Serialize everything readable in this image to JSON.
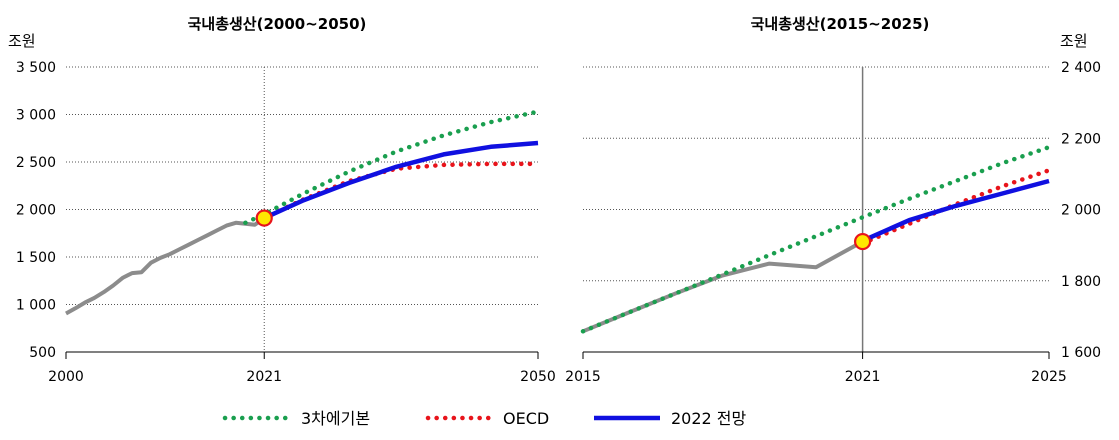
{
  "legend": [
    {
      "name": "3차에기본",
      "color": "#1a9f4f",
      "style": "dotted"
    },
    {
      "name": "OECD",
      "color": "#e8141b",
      "style": "dotted"
    },
    {
      "name": "2022 전망",
      "color": "#1010e0",
      "style": "solid"
    }
  ],
  "chart_data": [
    {
      "type": "line",
      "title": "국내총생산(2000~2050)",
      "ylabel": "조원",
      "xlim": [
        2000,
        2050
      ],
      "ylim": [
        500,
        3500
      ],
      "x_ticks": [
        "2000",
        "2021",
        "2050"
      ],
      "y_ticks": [
        "500",
        "1 000",
        "1 500",
        "2 000",
        "2 500",
        "3 000",
        "3 500"
      ],
      "grid": "horizontal-dotted",
      "vertical_line": 2021,
      "highlight_point": {
        "x": 2021,
        "y": 1910
      },
      "series": [
        {
          "name": "history",
          "color": "#8c8c8c",
          "style": "solid",
          "x": [
            2000,
            2001,
            2002,
            2003,
            2004,
            2005,
            2006,
            2007,
            2008,
            2009,
            2010,
            2011,
            2012,
            2013,
            2014,
            2015,
            2016,
            2017,
            2018,
            2019,
            2020,
            2021
          ],
          "y": [
            905,
            960,
            1020,
            1070,
            1130,
            1200,
            1280,
            1330,
            1340,
            1440,
            1490,
            1530,
            1580,
            1630,
            1680,
            1730,
            1780,
            1830,
            1860,
            1850,
            1840,
            1910
          ]
        },
        {
          "name": "3차에기본",
          "color": "#1a9f4f",
          "style": "dotted",
          "x": [
            2019,
            2021,
            2025,
            2030,
            2035,
            2040,
            2045,
            2050
          ],
          "y": [
            1860,
            1950,
            2160,
            2400,
            2610,
            2780,
            2920,
            3030
          ]
        },
        {
          "name": "OECD",
          "color": "#e8141b",
          "style": "dotted",
          "x": [
            2021,
            2025,
            2030,
            2035,
            2040,
            2045,
            2050
          ],
          "y": [
            1910,
            2100,
            2300,
            2430,
            2470,
            2480,
            2480
          ]
        },
        {
          "name": "2022 전망",
          "color": "#1010e0",
          "style": "solid",
          "x": [
            2021,
            2025,
            2030,
            2035,
            2040,
            2045,
            2050
          ],
          "y": [
            1910,
            2090,
            2280,
            2450,
            2580,
            2660,
            2700
          ]
        }
      ]
    },
    {
      "type": "line",
      "title": "국내총생산(2015~2025)",
      "ylabel": "조원",
      "xlim": [
        2015,
        2025
      ],
      "ylim": [
        1600,
        2400
      ],
      "x_ticks": [
        "2015",
        "2021",
        "2025"
      ],
      "y_ticks": [
        "1 600",
        "1 800",
        "2 000",
        "2 200",
        "2 400"
      ],
      "grid": "horizontal-dotted",
      "vertical_line": 2021,
      "highlight_point": {
        "x": 2021,
        "y": 1910
      },
      "series": [
        {
          "name": "history",
          "color": "#8c8c8c",
          "style": "solid",
          "x": [
            2015,
            2016,
            2017,
            2018,
            2019,
            2020,
            2021
          ],
          "y": [
            1658,
            1712,
            1765,
            1815,
            1848,
            1838,
            1910
          ]
        },
        {
          "name": "3차에기본",
          "color": "#1a9f4f",
          "style": "dotted",
          "x": [
            2015,
            2016,
            2017,
            2018,
            2019,
            2020,
            2021,
            2022,
            2023,
            2024,
            2025
          ],
          "y": [
            1658,
            1712,
            1765,
            1818,
            1872,
            1925,
            1978,
            2030,
            2080,
            2130,
            2175
          ]
        },
        {
          "name": "OECD",
          "color": "#e8141b",
          "style": "dotted",
          "x": [
            2021,
            2022,
            2023,
            2024,
            2025
          ],
          "y": [
            1905,
            1960,
            2015,
            2065,
            2110
          ]
        },
        {
          "name": "2022 전망",
          "color": "#1010e0",
          "style": "solid",
          "x": [
            2021,
            2022,
            2023,
            2024,
            2025
          ],
          "y": [
            1912,
            1970,
            2010,
            2045,
            2080
          ]
        }
      ]
    }
  ]
}
